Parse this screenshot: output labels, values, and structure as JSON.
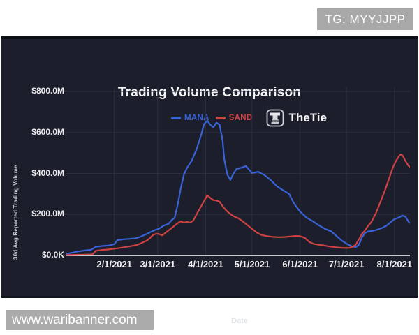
{
  "badge": {
    "text": "TG: MYYJJPP"
  },
  "watermark": {
    "text": "www.waribanner.com"
  },
  "brand": {
    "name": "TheTie"
  },
  "chart_data": {
    "type": "line",
    "title": "Trading Volume Comparison",
    "xlabel": "Date",
    "ylabel": "30d Avg Reported Trading Volume",
    "grid": true,
    "legend_position": "top-center",
    "background": "#1c1f2b",
    "gridline_color": "#2b3040",
    "axis_line_color": "#c9ccd3",
    "value_unit": "USD millions",
    "x_unit": "days since 2021-01-01",
    "x_domain_days": [
      0,
      222
    ],
    "ylim": [
      0,
      820
    ],
    "y_ticks": [
      {
        "label": "$800.0M",
        "value": 800
      },
      {
        "label": "$600.0M",
        "value": 600
      },
      {
        "label": "$400.0M",
        "value": 400
      },
      {
        "label": "$200.0M",
        "value": 200
      },
      {
        "label": "$0.0K",
        "value": 0
      }
    ],
    "x_ticks": [
      {
        "label": "2/1/2021",
        "day": 31
      },
      {
        "label": "3/1/2021",
        "day": 59
      },
      {
        "label": "4/1/2021",
        "day": 90
      },
      {
        "label": "5/1/2021",
        "day": 120
      },
      {
        "label": "6/1/2021",
        "day": 151
      },
      {
        "label": "7/1/2021",
        "day": 181
      },
      {
        "label": "8/1/2021",
        "day": 212
      }
    ],
    "series": [
      {
        "name": "MANA",
        "color": "#3a62d8",
        "points": [
          [
            0,
            8
          ],
          [
            4,
            14
          ],
          [
            8,
            20
          ],
          [
            12,
            24
          ],
          [
            16,
            28
          ],
          [
            19,
            42
          ],
          [
            23,
            46
          ],
          [
            27,
            48
          ],
          [
            31,
            55
          ],
          [
            33,
            75
          ],
          [
            37,
            79
          ],
          [
            41,
            81
          ],
          [
            45,
            84
          ],
          [
            48,
            92
          ],
          [
            52,
            105
          ],
          [
            55,
            116
          ],
          [
            58,
            126
          ],
          [
            60,
            131
          ],
          [
            63,
            146
          ],
          [
            66,
            154
          ],
          [
            68,
            172
          ],
          [
            70,
            184
          ],
          [
            72,
            250
          ],
          [
            74,
            330
          ],
          [
            76,
            395
          ],
          [
            78,
            428
          ],
          [
            81,
            462
          ],
          [
            84,
            515
          ],
          [
            87,
            585
          ],
          [
            89,
            640
          ],
          [
            91,
            658
          ],
          [
            93,
            638
          ],
          [
            95,
            625
          ],
          [
            97,
            648
          ],
          [
            99,
            638
          ],
          [
            101,
            560
          ],
          [
            102,
            470
          ],
          [
            104,
            395
          ],
          [
            106,
            368
          ],
          [
            108,
            400
          ],
          [
            110,
            422
          ],
          [
            113,
            428
          ],
          [
            116,
            436
          ],
          [
            120,
            402
          ],
          [
            124,
            408
          ],
          [
            128,
            392
          ],
          [
            132,
            368
          ],
          [
            136,
            338
          ],
          [
            140,
            318
          ],
          [
            144,
            300
          ],
          [
            147,
            255
          ],
          [
            151,
            214
          ],
          [
            155,
            186
          ],
          [
            159,
            168
          ],
          [
            163,
            148
          ],
          [
            167,
            130
          ],
          [
            171,
            118
          ],
          [
            175,
            92
          ],
          [
            178,
            72
          ],
          [
            181,
            58
          ],
          [
            184,
            46
          ],
          [
            187,
            40
          ],
          [
            189,
            52
          ],
          [
            191,
            88
          ],
          [
            193,
            110
          ],
          [
            195,
            117
          ],
          [
            198,
            120
          ],
          [
            201,
            126
          ],
          [
            204,
            134
          ],
          [
            207,
            146
          ],
          [
            210,
            165
          ],
          [
            212,
            177
          ],
          [
            215,
            186
          ],
          [
            217,
            194
          ],
          [
            219,
            190
          ],
          [
            220,
            178
          ],
          [
            221,
            165
          ],
          [
            222,
            158
          ]
        ]
      },
      {
        "name": "SAND",
        "color": "#cf4242",
        "points": [
          [
            0,
            2
          ],
          [
            6,
            3
          ],
          [
            12,
            4
          ],
          [
            17,
            5
          ],
          [
            19,
            22
          ],
          [
            23,
            27
          ],
          [
            27,
            29
          ],
          [
            31,
            33
          ],
          [
            35,
            37
          ],
          [
            39,
            42
          ],
          [
            43,
            47
          ],
          [
            46,
            52
          ],
          [
            49,
            62
          ],
          [
            52,
            72
          ],
          [
            54,
            84
          ],
          [
            56,
            100
          ],
          [
            58,
            106
          ],
          [
            60,
            104
          ],
          [
            62,
            98
          ],
          [
            64,
            110
          ],
          [
            66,
            122
          ],
          [
            68,
            133
          ],
          [
            70,
            146
          ],
          [
            72,
            158
          ],
          [
            74,
            166
          ],
          [
            76,
            160
          ],
          [
            78,
            164
          ],
          [
            80,
            160
          ],
          [
            82,
            170
          ],
          [
            85,
            212
          ],
          [
            88,
            252
          ],
          [
            90,
            280
          ],
          [
            91,
            293
          ],
          [
            93,
            281
          ],
          [
            95,
            270
          ],
          [
            97,
            268
          ],
          [
            99,
            262
          ],
          [
            101,
            240
          ],
          [
            103,
            222
          ],
          [
            105,
            208
          ],
          [
            107,
            196
          ],
          [
            109,
            188
          ],
          [
            111,
            182
          ],
          [
            113,
            172
          ],
          [
            115,
            160
          ],
          [
            117,
            148
          ],
          [
            120,
            130
          ],
          [
            123,
            112
          ],
          [
            126,
            100
          ],
          [
            129,
            95
          ],
          [
            133,
            91
          ],
          [
            137,
            89
          ],
          [
            141,
            90
          ],
          [
            145,
            93
          ],
          [
            148,
            95
          ],
          [
            151,
            94
          ],
          [
            154,
            86
          ],
          [
            157,
            66
          ],
          [
            160,
            56
          ],
          [
            163,
            52
          ],
          [
            166,
            49
          ],
          [
            169,
            45
          ],
          [
            172,
            42
          ],
          [
            175,
            39
          ],
          [
            178,
            37
          ],
          [
            181,
            36
          ],
          [
            183,
            37
          ],
          [
            185,
            42
          ],
          [
            187,
            52
          ],
          [
            189,
            78
          ],
          [
            191,
            105
          ],
          [
            193,
            122
          ],
          [
            195,
            145
          ],
          [
            197,
            162
          ],
          [
            200,
            205
          ],
          [
            203,
            262
          ],
          [
            206,
            320
          ],
          [
            209,
            385
          ],
          [
            211,
            430
          ],
          [
            213,
            462
          ],
          [
            215,
            485
          ],
          [
            216,
            493
          ],
          [
            217,
            490
          ],
          [
            218,
            478
          ],
          [
            219,
            462
          ],
          [
            220,
            450
          ],
          [
            221,
            438
          ],
          [
            222,
            432
          ]
        ]
      }
    ]
  }
}
